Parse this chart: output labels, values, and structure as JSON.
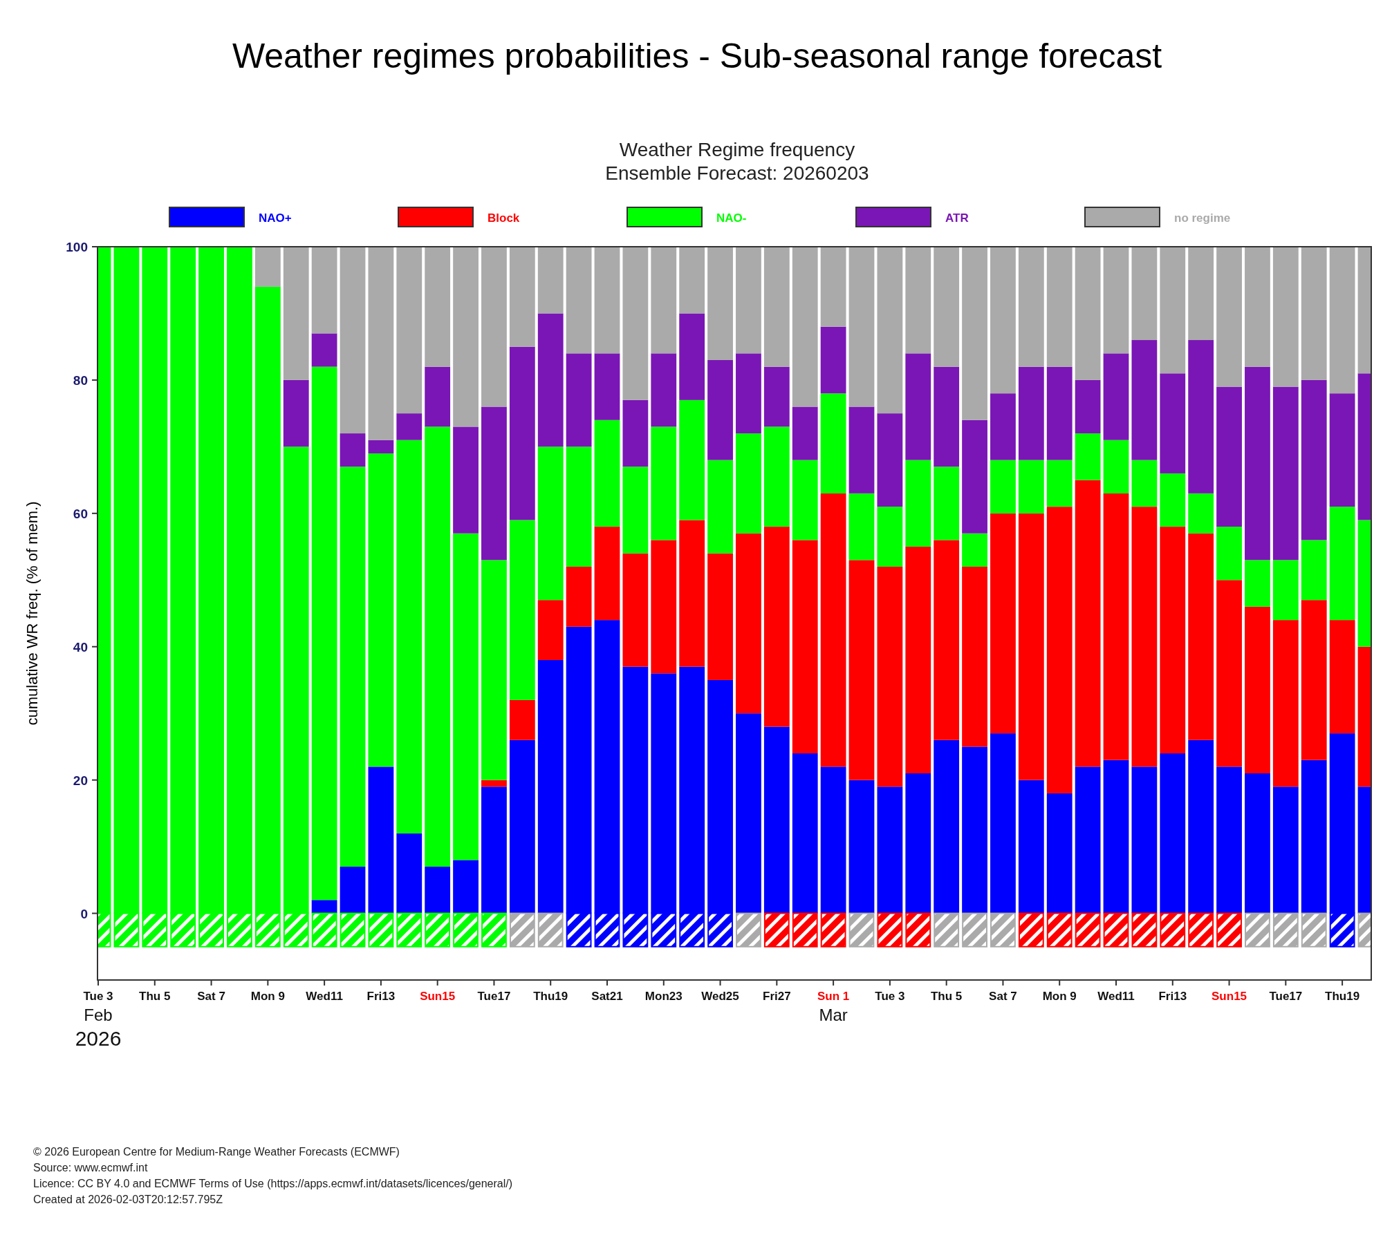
{
  "chart_data": [
    {
      "type": "bar",
      "stacked": true,
      "title": "Weather regimes probabilities - Sub-seasonal range forecast",
      "subtitle": "Weather Regime frequency\nEnsemble Forecast: 20260203",
      "ylabel": "cumulative WR freq. (% of mem.)",
      "x": [
        "2026-02-03",
        "2026-02-04",
        "2026-02-05",
        "2026-02-06",
        "2026-02-07",
        "2026-02-08",
        "2026-02-09",
        "2026-02-10",
        "2026-02-11",
        "2026-02-12",
        "2026-02-13",
        "2026-02-14",
        "2026-02-15",
        "2026-02-16",
        "2026-02-17",
        "2026-02-18",
        "2026-02-19",
        "2026-02-20",
        "2026-02-21",
        "2026-02-22",
        "2026-02-23",
        "2026-02-24",
        "2026-02-25",
        "2026-02-26",
        "2026-02-27",
        "2026-02-28",
        "2026-03-01",
        "2026-03-02",
        "2026-03-03",
        "2026-03-04",
        "2026-03-05",
        "2026-03-06",
        "2026-03-07",
        "2026-03-08",
        "2026-03-09",
        "2026-03-10",
        "2026-03-11",
        "2026-03-12",
        "2026-03-13",
        "2026-03-14",
        "2026-03-15",
        "2026-03-16",
        "2026-03-17",
        "2026-03-18",
        "2026-03-19",
        "2026-03-20"
      ],
      "xlim": [
        "2026-02-03",
        "2026-03-20"
      ],
      "xticks": [
        {
          "value": "2026-02-03",
          "label": "Tue 3\nFeb\n2026"
        },
        {
          "value": "2026-02-05",
          "label": "Thu 5"
        },
        {
          "value": "2026-02-07",
          "label": "Sat 7"
        },
        {
          "value": "2026-02-09",
          "label": "Mon 9"
        },
        {
          "value": "2026-02-11",
          "label": "Wed11"
        },
        {
          "value": "2026-02-13",
          "label": "Fri13"
        },
        {
          "value": "2026-02-15",
          "label": "Sun15"
        },
        {
          "value": "2026-02-17",
          "label": "Tue17"
        },
        {
          "value": "2026-02-19",
          "label": "Thu19"
        },
        {
          "value": "2026-02-21",
          "label": "Sat21"
        },
        {
          "value": "2026-02-23",
          "label": "Mon23"
        },
        {
          "value": "2026-02-25",
          "label": "Wed25"
        },
        {
          "value": "2026-02-27",
          "label": "Fri27"
        },
        {
          "value": "2026-03-01",
          "label": "Sun 1\nMar"
        },
        {
          "value": "2026-03-03",
          "label": "Tue 3"
        },
        {
          "value": "2026-03-05",
          "label": "Thu 5"
        },
        {
          "value": "2026-03-07",
          "label": "Sat 7"
        },
        {
          "value": "2026-03-09",
          "label": "Mon 9"
        },
        {
          "value": "2026-03-11",
          "label": "Wed11"
        },
        {
          "value": "2026-03-13",
          "label": "Fri13"
        },
        {
          "value": "2026-03-15",
          "label": "Sun15"
        },
        {
          "value": "2026-03-17",
          "label": "Tue17"
        },
        {
          "value": "2026-03-19",
          "label": "Thu19"
        }
      ],
      "ylim": [
        -10,
        100
      ],
      "yticks": [
        0,
        20,
        40,
        60,
        80,
        100
      ],
      "legend": "top",
      "series": [
        {
          "name": "NAO+",
          "color": "#0000ff",
          "values": [
            0,
            0,
            0,
            0,
            0,
            0,
            0,
            0,
            2,
            7,
            22,
            12,
            7,
            8,
            19,
            26,
            38,
            43,
            44,
            37,
            36,
            37,
            35,
            30,
            28,
            24,
            22,
            20,
            19,
            21,
            26,
            25,
            27,
            20,
            18,
            22,
            23,
            22,
            24,
            26,
            22,
            21,
            19,
            23,
            27,
            19
          ]
        },
        {
          "name": "Block",
          "color": "#ff0000",
          "values": [
            0,
            0,
            0,
            0,
            0,
            0,
            0,
            0,
            0,
            0,
            0,
            0,
            0,
            0,
            1,
            6,
            9,
            9,
            14,
            17,
            20,
            22,
            19,
            27,
            30,
            32,
            41,
            33,
            33,
            34,
            30,
            27,
            33,
            40,
            43,
            43,
            40,
            39,
            34,
            31,
            28,
            25,
            25,
            24,
            17,
            21
          ]
        },
        {
          "name": "NAO-",
          "color": "#00ff00",
          "values": [
            100,
            100,
            100,
            100,
            100,
            100,
            94,
            70,
            80,
            60,
            47,
            59,
            66,
            49,
            33,
            27,
            23,
            18,
            16,
            13,
            17,
            18,
            14,
            15,
            15,
            12,
            15,
            10,
            9,
            13,
            11,
            5,
            8,
            8,
            7,
            7,
            8,
            7,
            8,
            6,
            8,
            7,
            9,
            9,
            17,
            19
          ]
        },
        {
          "name": "ATR",
          "color": "#7a16b5",
          "values": [
            0,
            0,
            0,
            0,
            0,
            0,
            0,
            10,
            5,
            5,
            2,
            4,
            9,
            16,
            23,
            26,
            20,
            14,
            10,
            10,
            11,
            13,
            15,
            12,
            9,
            8,
            10,
            13,
            14,
            16,
            15,
            17,
            10,
            14,
            14,
            8,
            13,
            18,
            15,
            23,
            21,
            29,
            26,
            24,
            17,
            22
          ]
        },
        {
          "name": "no regime",
          "color": "#aaaaaa",
          "values": [
            0,
            0,
            0,
            0,
            0,
            0,
            6,
            20,
            13,
            28,
            29,
            25,
            18,
            27,
            24,
            15,
            10,
            16,
            16,
            23,
            16,
            10,
            17,
            16,
            18,
            24,
            12,
            24,
            25,
            16,
            18,
            26,
            22,
            18,
            18,
            20,
            16,
            14,
            19,
            14,
            21,
            18,
            21,
            20,
            22,
            19
          ]
        }
      ],
      "annotations": [
        "© 2026 European Centre for Medium-Range Weather Forecasts (ECMWF)",
        "Source: www.ecmwf.int",
        "Licence: CC BY 4.0 and ECMWF Terms of Use (https://apps.ecmwf.int/datasets/licences/general/)",
        "Created at 2026-02-03T20:12:57.795Z"
      ]
    },
    {
      "type": "bar",
      "xlim": [
        "2026-02-03",
        "2026-03-20"
      ],
      "ylim": [
        -10,
        100
      ],
      "x": [
        "2026-02-03",
        "2026-02-04",
        "2026-02-05",
        "2026-02-06",
        "2026-02-07",
        "2026-02-08",
        "2026-02-09",
        "2026-02-10",
        "2026-02-11",
        "2026-02-12",
        "2026-02-13",
        "2026-02-14",
        "2026-02-15",
        "2026-02-16",
        "2026-02-17",
        "2026-02-18",
        "2026-02-19",
        "2026-02-20",
        "2026-02-21",
        "2026-02-22",
        "2026-02-23",
        "2026-02-24",
        "2026-02-25",
        "2026-02-26",
        "2026-02-27",
        "2026-02-28",
        "2026-03-01",
        "2026-03-02",
        "2026-03-03",
        "2026-03-04",
        "2026-03-05",
        "2026-03-06",
        "2026-03-07",
        "2026-03-08",
        "2026-03-09",
        "2026-03-10",
        "2026-03-11",
        "2026-03-12",
        "2026-03-13",
        "2026-03-14",
        "2026-03-15",
        "2026-03-16",
        "2026-03-17",
        "2026-03-18",
        "2026-03-19",
        "2026-03-20"
      ],
      "base": [
        -5,
        -5,
        -5,
        -5,
        -5,
        -5,
        -5,
        -5,
        -5,
        -5,
        -5,
        -5,
        -5,
        -5,
        -5,
        -5,
        -5,
        -5,
        -5,
        -5,
        -5,
        -5,
        -5,
        -5,
        -5,
        -5,
        -5,
        -5,
        -5,
        -5,
        -5,
        -5,
        -5,
        -5,
        -5,
        -5,
        -5,
        -5,
        -5,
        -5,
        -5,
        -5,
        -5,
        -5,
        -5,
        -5
      ],
      "values": [
        5,
        5,
        5,
        5,
        5,
        5,
        5,
        5,
        5,
        5,
        5,
        5,
        5,
        5,
        5,
        5,
        5,
        5,
        5,
        5,
        5,
        5,
        5,
        5,
        5,
        5,
        5,
        5,
        5,
        5,
        5,
        5,
        5,
        5,
        5,
        5,
        5,
        5,
        5,
        5,
        5,
        5,
        5,
        5,
        5,
        5
      ],
      "colors": [
        "#00ff00",
        "#00ff00",
        "#00ff00",
        "#00ff00",
        "#00ff00",
        "#00ff00",
        "#00ff00",
        "#00ff00",
        "#00ff00",
        "#00ff00",
        "#00ff00",
        "#00ff00",
        "#00ff00",
        "#00ff00",
        "#00ff00",
        "#aaaaaa",
        "#aaaaaa",
        "#0000ff",
        "#0000ff",
        "#0000ff",
        "#0000ff",
        "#0000ff",
        "#0000ff",
        "#aaaaaa",
        "#ff0000",
        "#ff0000",
        "#ff0000",
        "#aaaaaa",
        "#ff0000",
        "#ff0000",
        "#aaaaaa",
        "#aaaaaa",
        "#aaaaaa",
        "#ff0000",
        "#ff0000",
        "#ff0000",
        "#ff0000",
        "#ff0000",
        "#ff0000",
        "#ff0000",
        "#ff0000",
        "#aaaaaa",
        "#aaaaaa",
        "#aaaaaa",
        "#0000ff",
        "#aaaaaa"
      ]
    }
  ]
}
